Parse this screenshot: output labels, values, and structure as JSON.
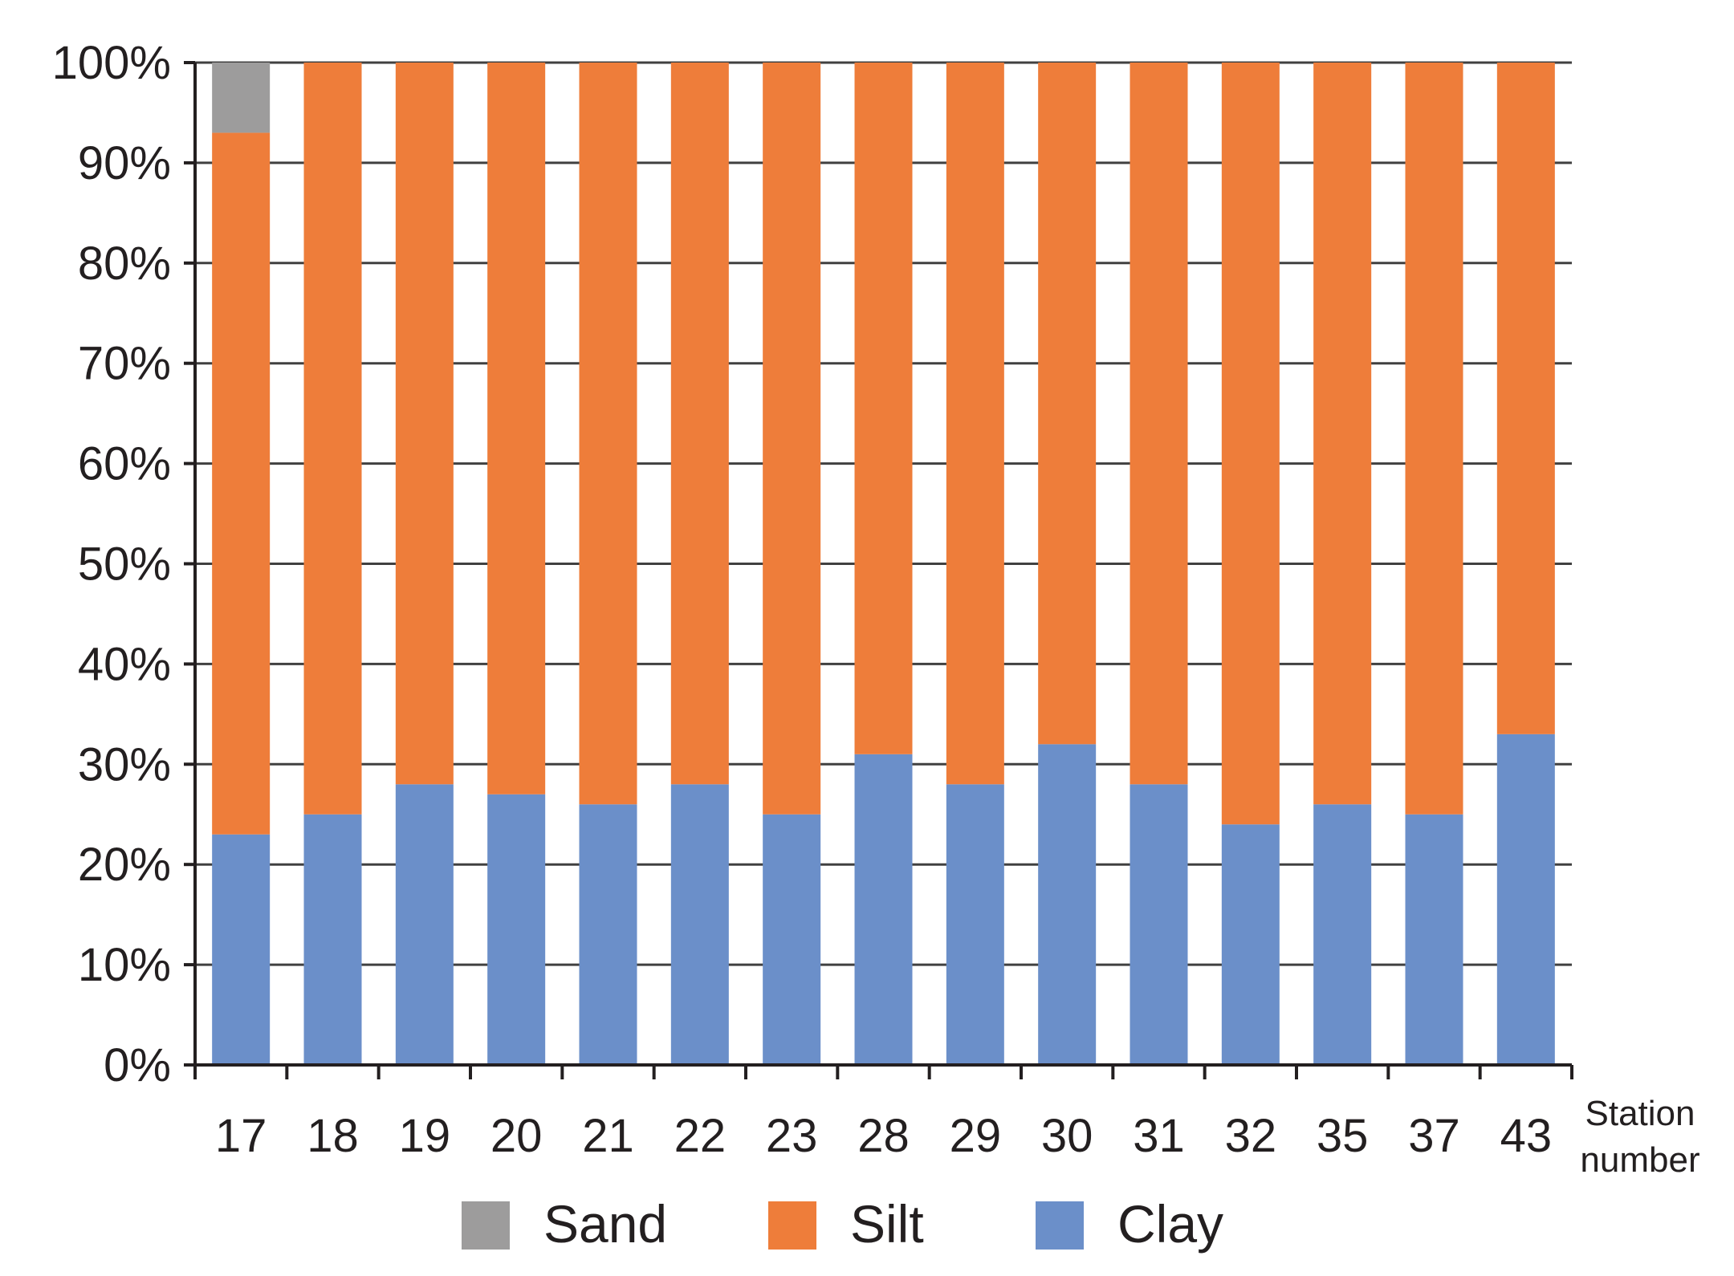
{
  "chart_data": {
    "type": "bar",
    "stacked": true,
    "percent": true,
    "categories": [
      "17",
      "18",
      "19",
      "20",
      "21",
      "22",
      "23",
      "28",
      "29",
      "30",
      "31",
      "32",
      "35",
      "37",
      "43"
    ],
    "series": [
      {
        "name": "Clay",
        "color": "#6b8fc9",
        "values": [
          23,
          25,
          28,
          27,
          26,
          28,
          25,
          31,
          28,
          32,
          28,
          24,
          26,
          25,
          33
        ]
      },
      {
        "name": "Silt",
        "color": "#ee7d3a",
        "values": [
          70,
          75,
          72,
          73,
          74,
          72,
          75,
          69,
          72,
          68,
          72,
          76,
          74,
          75,
          67
        ]
      },
      {
        "name": "Sand",
        "color": "#9d9c9c",
        "values": [
          7,
          0,
          0,
          0,
          0,
          0,
          0,
          0,
          0,
          0,
          0,
          0,
          0,
          0,
          0
        ]
      }
    ],
    "xlabel": [
      "Station",
      "number"
    ],
    "ylabel": "",
    "ylim": [
      0,
      100
    ],
    "yticks": [
      "0%",
      "10%",
      "20%",
      "30%",
      "40%",
      "50%",
      "60%",
      "70%",
      "80%",
      "90%",
      "100%"
    ],
    "grid": true,
    "legend": {
      "placement": "bottom",
      "order": [
        "Sand",
        "Silt",
        "Clay"
      ]
    }
  }
}
